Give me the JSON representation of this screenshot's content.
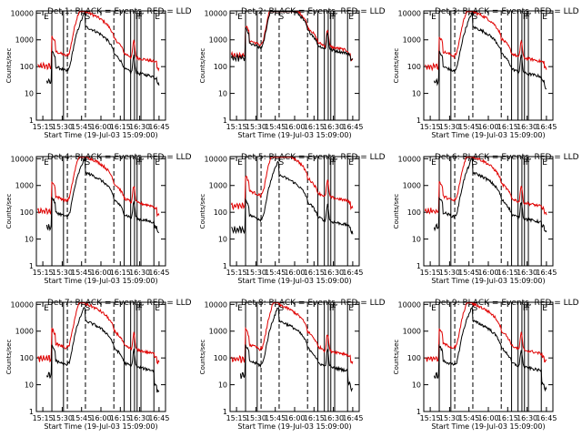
{
  "chart_data": {
    "type": "line",
    "layout": "3x3 panels",
    "x_tick_labels": [
      "15:15",
      "15:30",
      "15:45",
      "16:00",
      "16:15",
      "16:30",
      "16:45"
    ],
    "x_ticks_minutes": [
      0,
      15,
      30,
      45,
      60,
      75,
      90
    ],
    "xlim_minutes": [
      -5,
      95
    ],
    "y_tick_labels": [
      "1",
      "10",
      "100",
      "1000",
      "10000"
    ],
    "ylim": [
      1,
      12000
    ],
    "yscale": "log",
    "xlabel": "Start Time (19-Jul-03 15:09:00)",
    "ylabel": "Counts/sec",
    "series_names": [
      "Events (BLACK)",
      "LLD (RED)"
    ],
    "colors": {
      "events": "#000000",
      "lld": "#e00000",
      "axis": "#000000"
    },
    "flag_letters": [
      "E",
      "S",
      "F",
      "F",
      "E"
    ],
    "flag_positions_minutes": [
      0,
      32,
      71,
      73,
      86
    ],
    "solid_vlines_minutes": [
      7,
      16,
      63,
      68,
      71,
      73,
      76,
      86
    ],
    "dashed_vlines_minutes": [
      19,
      33,
      55
    ],
    "panels": [
      {
        "title": "Det  1: BLACK = Events, RED = LLD",
        "events_base": 38,
        "lld_base": 140,
        "events_end": 40,
        "lld_end": 150,
        "events_start": 20,
        "lld_start": 1
      },
      {
        "title": "Det  2: BLACK = Events, RED = LLD",
        "events_base": 280,
        "lld_base": 360,
        "events_end": 290,
        "lld_end": 300,
        "events_start": 3,
        "lld_start": 3
      },
      {
        "title": "Det  3: BLACK = Events, RED = LLD",
        "events_base": 38,
        "lld_base": 140,
        "events_end": 30,
        "lld_end": 150,
        "events_start": 20,
        "lld_start": 1
      },
      {
        "title": "Det  4: BLACK = Events, RED = LLD",
        "events_base": 38,
        "lld_base": 150,
        "events_end": 30,
        "lld_end": 140,
        "events_start": 20,
        "lld_start": 1
      },
      {
        "title": "Det  5: BLACK = Events, RED = LLD",
        "events_base": 30,
        "lld_base": 240,
        "events_end": 30,
        "lld_end": 250,
        "events_start": 3,
        "lld_start": 3
      },
      {
        "title": "Det  6: BLACK = Events, RED = LLD",
        "events_base": 38,
        "lld_base": 150,
        "events_end": 30,
        "lld_end": 140,
        "events_start": 20,
        "lld_start": 1
      },
      {
        "title": "Det  7: BLACK = Events, RED = LLD",
        "events_base": 30,
        "lld_base": 130,
        "events_end": 10,
        "lld_end": 120,
        "events_start": 20,
        "lld_start": 1
      },
      {
        "title": "Det  8: BLACK = Events, RED = LLD",
        "events_base": 30,
        "lld_base": 120,
        "events_end": 12,
        "lld_end": 120,
        "events_start": 20,
        "lld_start": 1
      },
      {
        "title": "Det  9: BLACK = Events, RED = LLD",
        "events_base": 30,
        "lld_base": 130,
        "events_end": 12,
        "lld_end": 120,
        "events_start": 20,
        "lld_start": 1
      }
    ]
  }
}
